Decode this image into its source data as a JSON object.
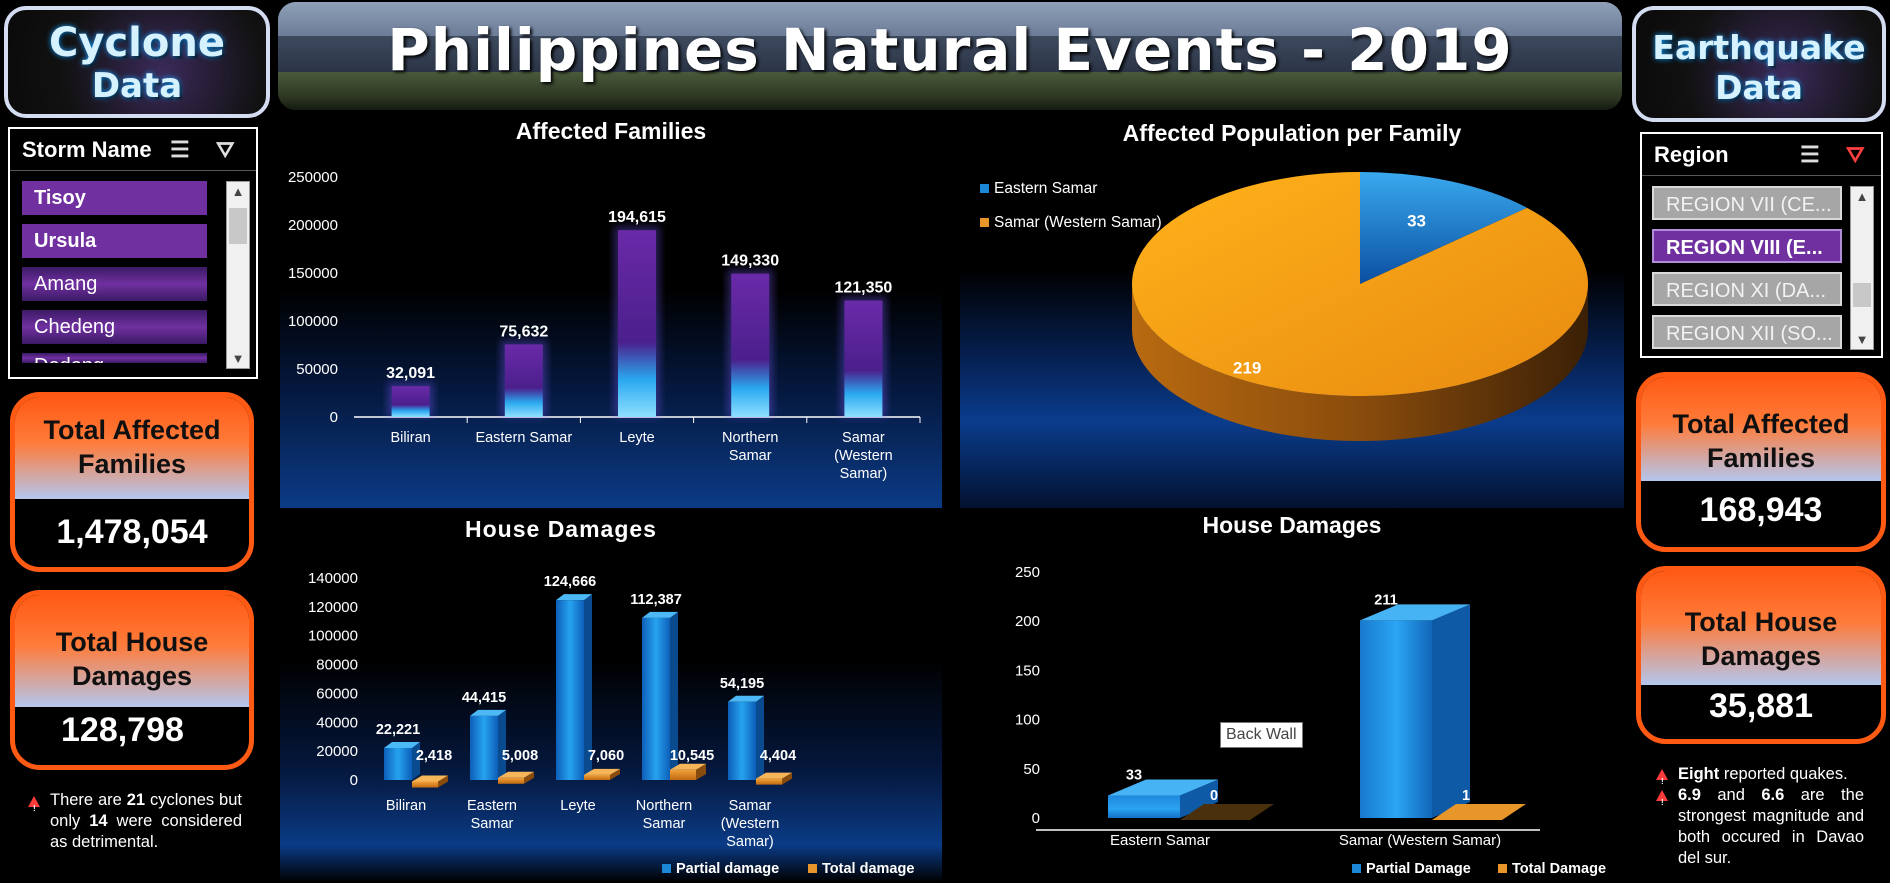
{
  "header": {
    "title": "Philippines Natural Events - 2019"
  },
  "left": {
    "title_line1": "Cyclone",
    "title_line2": "Data",
    "slicer": {
      "title": "Storm Name",
      "items": [
        "Tisoy",
        "Ursula",
        "Amang",
        "Chedeng",
        "Dodong"
      ]
    },
    "kpi_families": {
      "label_line1": "Total Affected",
      "label_line2": "Families",
      "value": "1,478,054"
    },
    "kpi_damages": {
      "label_line1": "Total House",
      "label_line2": "Damages",
      "value": "128,798"
    },
    "note": {
      "pre": "There are ",
      "count1": "21",
      "mid1": " cyclones but only ",
      "count2": "14",
      "mid2": " were considered as detrimental."
    }
  },
  "right": {
    "title_line1": "Earthquake",
    "title_line2": "Data",
    "slicer": {
      "title": "Region",
      "items": [
        "REGION VII (CE...",
        "REGION VIII (E...",
        "REGION XI (DA...",
        "REGION XII (SO..."
      ]
    },
    "kpi_families": {
      "label_line1": "Total Affected",
      "label_line2": "Families",
      "value": "168,943"
    },
    "kpi_damages": {
      "label_line1": "Total House",
      "label_line2": "Damages",
      "value": "35,881"
    },
    "notes": {
      "n1_bold": "Eight",
      "n1_rest": " reported quakes.",
      "n2_bold1": "6.9",
      "n2_mid": " and ",
      "n2_bold2": "6.6",
      "n2_rest": " are the strongest magnitude and both occured in Davao del sur."
    }
  },
  "tooltip": "Back Wall",
  "colors": {
    "accent_orange": "#ff5a14",
    "purple": "#7030a0",
    "blue": "#1b87d6",
    "orange": "#e8962a"
  },
  "chart_data": [
    {
      "type": "bar",
      "title": "Affected Families",
      "categories": [
        "Biliran",
        "Eastern Samar",
        "Leyte",
        "Northern Samar",
        "Samar (Western Samar)"
      ],
      "values": [
        32091,
        75632,
        194615,
        149330,
        121350
      ],
      "data_labels": [
        "32,091",
        "75,632",
        "194,615",
        "149,330",
        "121,350"
      ],
      "ylim": [
        0,
        250000
      ],
      "yticks": [
        "0",
        "50000",
        "100000",
        "150000",
        "200000",
        "250000"
      ],
      "grid": false
    },
    {
      "type": "pie",
      "title": "Affected Population per Family",
      "labels": [
        "Eastern Samar",
        "Samar (Western Samar)"
      ],
      "values": [
        33,
        219
      ],
      "legend": "top-left"
    },
    {
      "type": "bar",
      "title": "House Damages",
      "categories": [
        "Biliran",
        "Eastern Samar",
        "Leyte",
        "Northern Samar",
        "Samar (Western Samar)"
      ],
      "series": [
        {
          "name": "Partial damage",
          "values": [
            22221,
            44415,
            124666,
            112387,
            54195
          ],
          "labels": [
            "22,221",
            "44,415",
            "124,666",
            "112,387",
            "54,195"
          ]
        },
        {
          "name": "Total damage",
          "values": [
            2418,
            5008,
            7060,
            10545,
            4404
          ],
          "labels": [
            "2,418",
            "5,008",
            "7,060",
            "10,545",
            "4,404"
          ]
        }
      ],
      "ylim": [
        0,
        140000
      ],
      "yticks": [
        "0",
        "20000",
        "40000",
        "60000",
        "80000",
        "100000",
        "120000",
        "140000"
      ],
      "legend": "bottom-right"
    },
    {
      "type": "bar",
      "title": "House Damages",
      "categories": [
        "Eastern Samar",
        "Samar (Western Samar)"
      ],
      "series": [
        {
          "name": "Partial Damage",
          "values": [
            33,
            211
          ],
          "labels": [
            "33",
            "211"
          ]
        },
        {
          "name": "Total Damage",
          "values": [
            0,
            1
          ],
          "labels": [
            "0",
            "1"
          ]
        }
      ],
      "ylim": [
        0,
        250
      ],
      "yticks": [
        "0",
        "50",
        "100",
        "150",
        "200",
        "250"
      ],
      "legend": "bottom-right"
    }
  ]
}
